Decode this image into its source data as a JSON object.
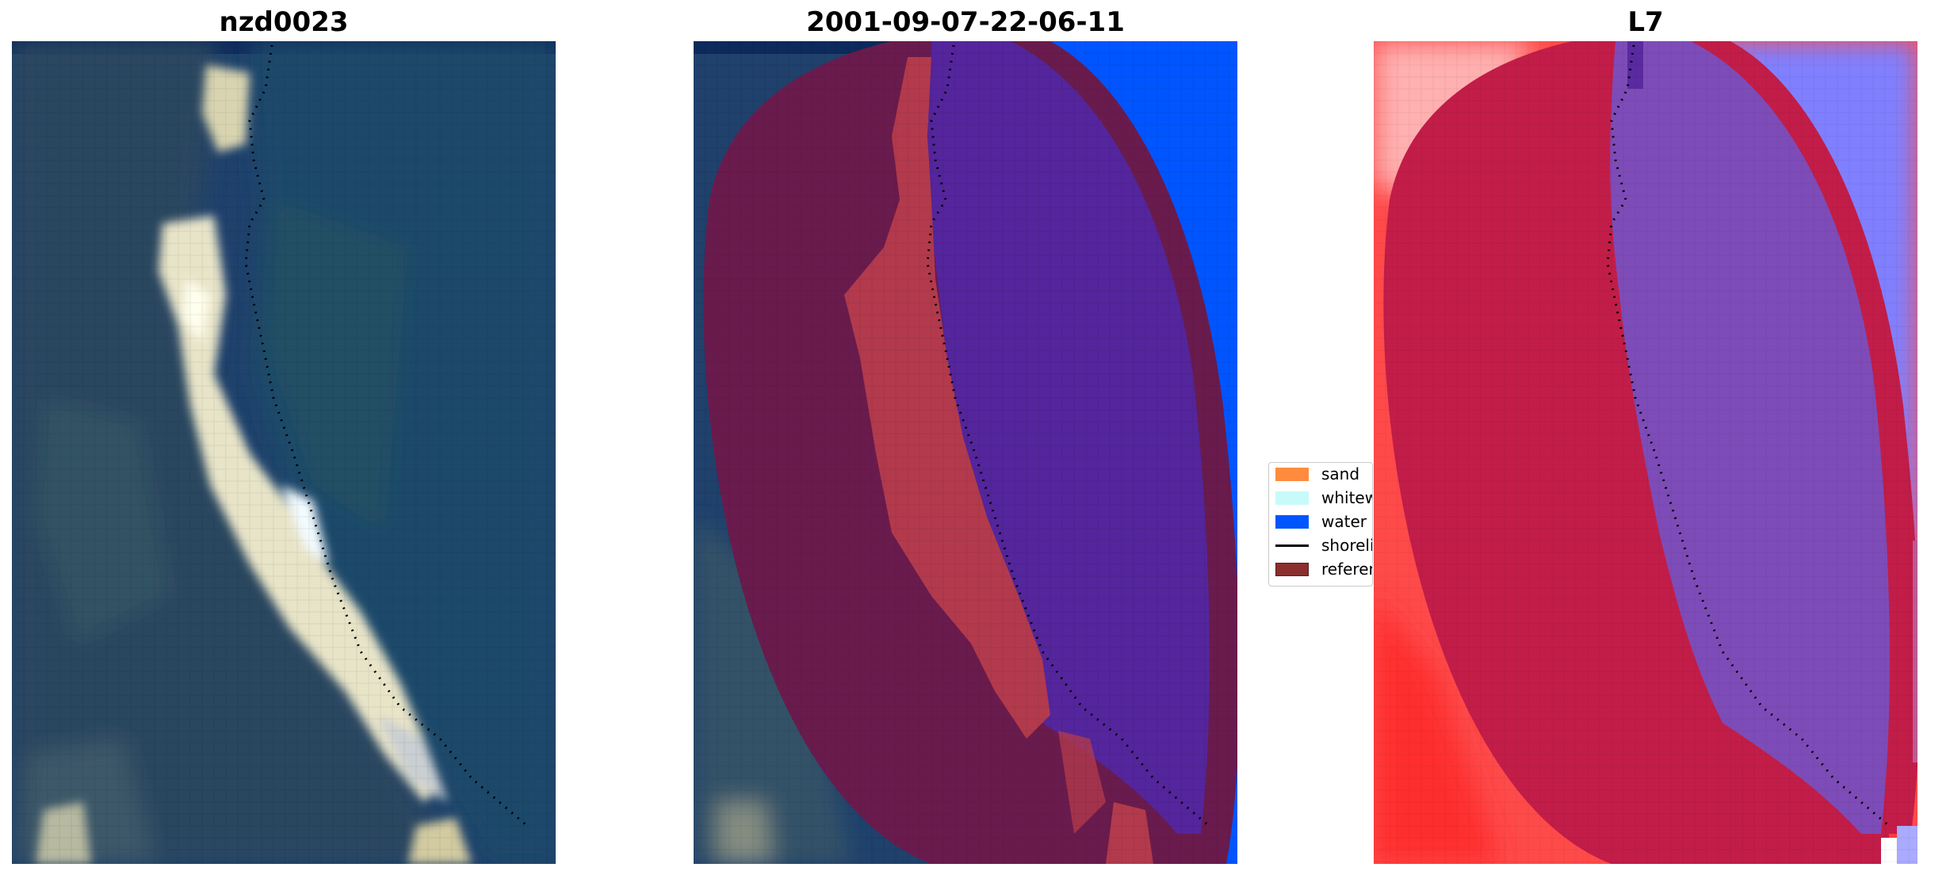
{
  "panels": [
    {
      "title": "nzd0023",
      "content": "satellite RGB image"
    },
    {
      "title": "2001-09-07-22-06-11",
      "content": "classified overlay"
    },
    {
      "title": "L7",
      "content": "water index overlay"
    }
  ],
  "legend": {
    "items": [
      {
        "label": "sand",
        "color": "#ff8c3c",
        "kind": "patch"
      },
      {
        "label": "whitewater",
        "color": "#c8fafa",
        "kind": "patch"
      },
      {
        "label": "water",
        "color": "#0055ff",
        "kind": "patch"
      },
      {
        "label": "shoreline",
        "color": "#000000",
        "kind": "line"
      },
      {
        "label": "reference",
        "color": "#8b2e2e",
        "kind": "patch"
      }
    ]
  },
  "colors": {
    "ocean": "#1e4470",
    "land_green": "#27465f",
    "beach_sand": "#e8e4c8",
    "class_land": "#6a1b4d",
    "class_sand_ref": "#b23a4c",
    "class_water": "#54259c",
    "class_water_edge": "#0055ff",
    "index_land": "#c21d48",
    "index_water": "#7e4cb8",
    "index_bright_water": "#8080ff",
    "index_red": "#ff3a3a"
  }
}
